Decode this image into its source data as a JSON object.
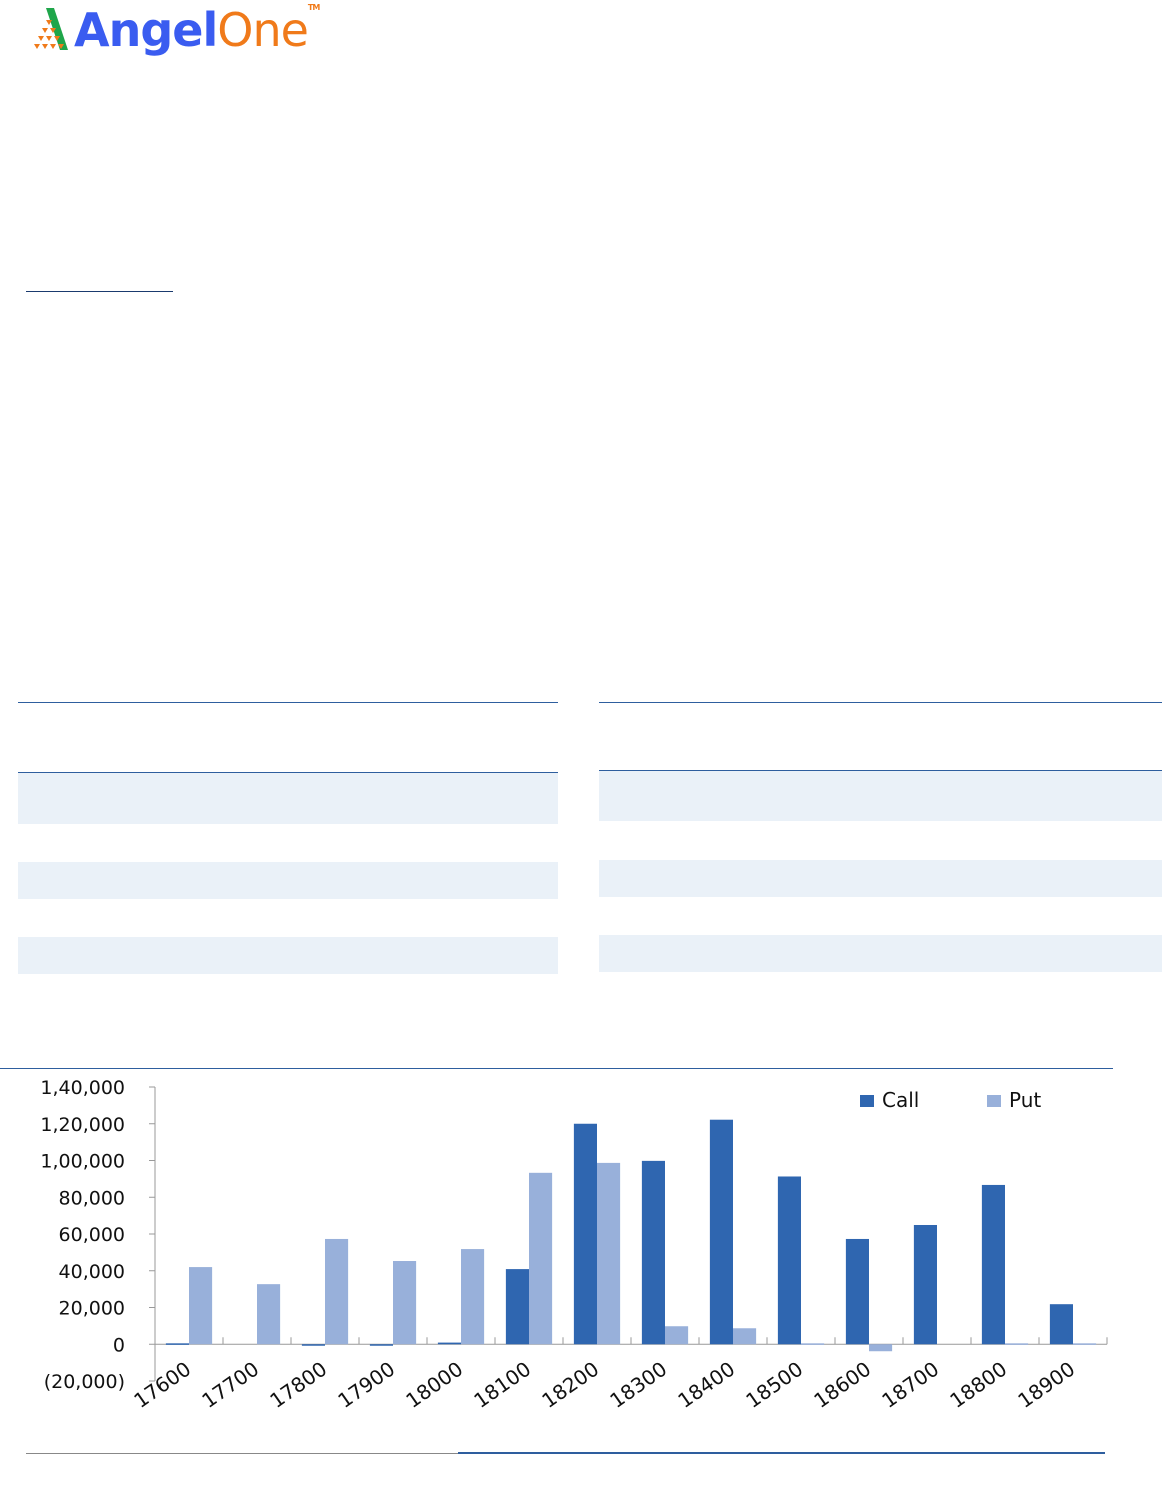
{
  "logo": {
    "brand_part1": "Angel",
    "brand_part2": "One",
    "trademark": "TM",
    "colors": {
      "angel": "#3a5cf0",
      "one": "#f07a1a",
      "icon_green": "#1fa64a"
    }
  },
  "chart_data": {
    "type": "bar",
    "categories": [
      "17600",
      "17700",
      "17800",
      "17900",
      "18000",
      "18100",
      "18200",
      "18300",
      "18400",
      "18500",
      "18600",
      "18700",
      "18800",
      "18900"
    ],
    "series": [
      {
        "name": "Call",
        "color": "#2f66b0",
        "values": [
          500,
          0,
          -800,
          -800,
          900,
          40900,
          120000,
          99800,
          122200,
          91300,
          57300,
          64900,
          86700,
          21800
        ]
      },
      {
        "name": "Put",
        "color": "#98b0da",
        "values": [
          42000,
          32700,
          57300,
          45300,
          51800,
          93300,
          98700,
          9800,
          8700,
          500,
          -3800,
          0,
          500,
          500
        ]
      }
    ],
    "yticks": [
      "(20,000)",
      "0",
      "20,000",
      "40,000",
      "60,000",
      "80,000",
      "1,00,000",
      "1,20,000",
      "1,40,000"
    ],
    "ylim": [
      -20000,
      140000
    ],
    "legend_position": "top-right",
    "grid": false
  }
}
